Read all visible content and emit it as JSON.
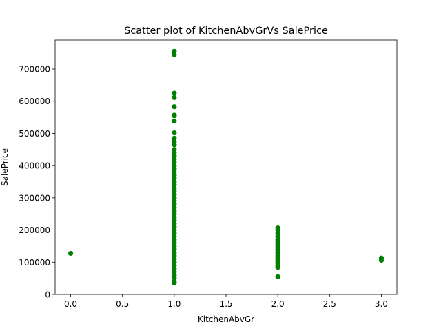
{
  "chart_data": {
    "type": "scatter",
    "title": "Scatter plot of KitchenAbvGrVs SalePrice",
    "xlabel": "KitchenAbvGr",
    "ylabel": "SalePrice",
    "xlim": [
      -0.15,
      3.15
    ],
    "ylim": [
      0,
      790000
    ],
    "xticks": [
      0.0,
      0.5,
      1.0,
      1.5,
      2.0,
      2.5,
      3.0
    ],
    "xtick_labels": [
      "0.0",
      "0.5",
      "1.0",
      "1.5",
      "2.0",
      "2.5",
      "3.0"
    ],
    "yticks": [
      0,
      100000,
      200000,
      300000,
      400000,
      500000,
      600000,
      700000
    ],
    "ytick_labels": [
      "0",
      "100000",
      "200000",
      "300000",
      "400000",
      "500000",
      "600000",
      "700000"
    ],
    "marker_color": "#008000",
    "grid": false,
    "legend": "none",
    "points": [
      {
        "x": 0,
        "y": 127500
      },
      {
        "x": 1,
        "y": 755000
      },
      {
        "x": 1,
        "y": 745000
      },
      {
        "x": 1,
        "y": 625000
      },
      {
        "x": 1,
        "y": 611657
      },
      {
        "x": 1,
        "y": 582933
      },
      {
        "x": 1,
        "y": 556581
      },
      {
        "x": 1,
        "y": 555000
      },
      {
        "x": 1,
        "y": 538000
      },
      {
        "x": 1,
        "y": 501837
      },
      {
        "x": 1,
        "y": 485000
      },
      {
        "x": 1,
        "y": 475000
      },
      {
        "x": 1,
        "y": 465000
      },
      {
        "x": 1,
        "y": 450000
      },
      {
        "x": 1,
        "y": 440000
      },
      {
        "x": 1,
        "y": 430000
      },
      {
        "x": 1,
        "y": 420000
      },
      {
        "x": 1,
        "y": 410000
      },
      {
        "x": 1,
        "y": 400000
      },
      {
        "x": 1,
        "y": 390000
      },
      {
        "x": 1,
        "y": 380000
      },
      {
        "x": 1,
        "y": 370000
      },
      {
        "x": 1,
        "y": 360000
      },
      {
        "x": 1,
        "y": 350000
      },
      {
        "x": 1,
        "y": 340000
      },
      {
        "x": 1,
        "y": 330000
      },
      {
        "x": 1,
        "y": 320000
      },
      {
        "x": 1,
        "y": 310000
      },
      {
        "x": 1,
        "y": 300000
      },
      {
        "x": 1,
        "y": 290000
      },
      {
        "x": 1,
        "y": 280000
      },
      {
        "x": 1,
        "y": 270000
      },
      {
        "x": 1,
        "y": 260000
      },
      {
        "x": 1,
        "y": 250000
      },
      {
        "x": 1,
        "y": 240000
      },
      {
        "x": 1,
        "y": 230000
      },
      {
        "x": 1,
        "y": 220000
      },
      {
        "x": 1,
        "y": 210000
      },
      {
        "x": 1,
        "y": 200000
      },
      {
        "x": 1,
        "y": 190000
      },
      {
        "x": 1,
        "y": 180000
      },
      {
        "x": 1,
        "y": 170000
      },
      {
        "x": 1,
        "y": 160000
      },
      {
        "x": 1,
        "y": 150000
      },
      {
        "x": 1,
        "y": 140000
      },
      {
        "x": 1,
        "y": 130000
      },
      {
        "x": 1,
        "y": 120000
      },
      {
        "x": 1,
        "y": 110000
      },
      {
        "x": 1,
        "y": 100000
      },
      {
        "x": 1,
        "y": 90000
      },
      {
        "x": 1,
        "y": 80000
      },
      {
        "x": 1,
        "y": 70000
      },
      {
        "x": 1,
        "y": 60000
      },
      {
        "x": 1,
        "y": 52000
      },
      {
        "x": 1,
        "y": 40000
      },
      {
        "x": 1,
        "y": 35311
      },
      {
        "x": 2,
        "y": 206300
      },
      {
        "x": 2,
        "y": 200000
      },
      {
        "x": 2,
        "y": 190000
      },
      {
        "x": 2,
        "y": 180000
      },
      {
        "x": 2,
        "y": 170000
      },
      {
        "x": 2,
        "y": 162000
      },
      {
        "x": 2,
        "y": 155000
      },
      {
        "x": 2,
        "y": 148000
      },
      {
        "x": 2,
        "y": 140000
      },
      {
        "x": 2,
        "y": 133000
      },
      {
        "x": 2,
        "y": 127000
      },
      {
        "x": 2,
        "y": 120000
      },
      {
        "x": 2,
        "y": 114000
      },
      {
        "x": 2,
        "y": 108000
      },
      {
        "x": 2,
        "y": 102000
      },
      {
        "x": 2,
        "y": 96000
      },
      {
        "x": 2,
        "y": 90000
      },
      {
        "x": 2,
        "y": 84000
      },
      {
        "x": 2,
        "y": 55000
      },
      {
        "x": 3,
        "y": 113000
      },
      {
        "x": 3,
        "y": 106000
      }
    ]
  }
}
